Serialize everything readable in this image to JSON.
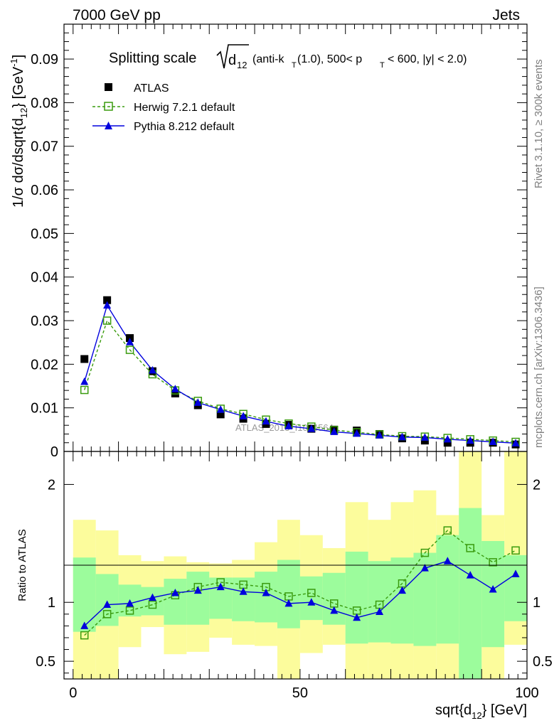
{
  "header": {
    "left": "7000 GeV pp",
    "right": "Jets"
  },
  "side_labels": {
    "rivet": "Rivet 3.1.10, ≥ 300k events",
    "mcplots": "mcplots.cern.ch [arXiv:1306.3436]"
  },
  "watermark": "ATLAS_2013_I1094564",
  "chart_data": [
    {
      "type": "line",
      "panel": "main",
      "title": "Splitting scale √d12 (anti-kT(1.0), 500< pT < 600, |y| < 2.0)",
      "title_parts": {
        "lead": "Splitting scale",
        "d": "d",
        "sub12": "12",
        "open": "(anti-k",
        "subT": "T",
        "mid": "(1.0), 500< p",
        "subT2": "T",
        "tail": "< 600, |y| < 2.0)"
      },
      "ylabel_parts": {
        "a": "1/σ dσ/dsqrt{d",
        "sub": "12",
        "b": "} [GeV",
        "sup": "-1",
        "c": "]"
      },
      "xlim": [
        -2,
        100
      ],
      "ylim": [
        0,
        0.098
      ],
      "yticks": [
        0,
        0.01,
        0.02,
        0.03,
        0.04,
        0.05,
        0.06,
        0.07,
        0.08,
        0.09
      ],
      "ytick_labels": [
        "0",
        "0.01",
        "0.02",
        "0.03",
        "0.04",
        "0.05",
        "0.06",
        "0.07",
        "0.08",
        "0.09"
      ],
      "x": [
        2.5,
        7.5,
        12.5,
        17.5,
        22.5,
        27.5,
        32.5,
        37.5,
        42.5,
        47.5,
        52.5,
        57.5,
        62.5,
        67.5,
        72.5,
        77.5,
        82.5,
        87.5,
        92.5,
        97.5
      ],
      "legend": [
        "ATLAS",
        "Herwig 7.2.1 default",
        "Pythia 8.212 default"
      ],
      "series": [
        {
          "name": "ATLAS",
          "color": "#000000",
          "values": [
            0.0212,
            0.0347,
            0.026,
            0.0184,
            0.0133,
            0.0106,
            0.0085,
            0.0075,
            0.0063,
            0.0061,
            0.0052,
            0.005,
            0.0048,
            0.004,
            0.003,
            0.0025,
            0.002,
            0.002,
            0.002,
            0.0016
          ]
        },
        {
          "name": "Herwig 7.2.1 default",
          "color": "#3a9b0e",
          "values": [
            0.0141,
            0.03,
            0.0233,
            0.0177,
            0.014,
            0.0116,
            0.0098,
            0.0086,
            0.0073,
            0.0064,
            0.0057,
            0.0049,
            0.0044,
            0.0039,
            0.0035,
            0.0034,
            0.0031,
            0.0028,
            0.0025,
            0.0022
          ]
        },
        {
          "name": "Pythia 8.212 default",
          "color": "#0000dd",
          "values": [
            0.016,
            0.0335,
            0.0251,
            0.0186,
            0.0143,
            0.0112,
            0.0096,
            0.0081,
            0.0069,
            0.0058,
            0.0052,
            0.0045,
            0.0041,
            0.0037,
            0.0033,
            0.0032,
            0.0028,
            0.0025,
            0.0022,
            0.0019
          ]
        }
      ]
    },
    {
      "type": "line",
      "panel": "ratio",
      "ylabel": "Ratio to ATLAS",
      "xlabel_parts": {
        "a": "sqrt{d",
        "sub": "12",
        "b": "} [GeV]"
      },
      "xlim": [
        -2,
        100
      ],
      "ylim": [
        0.35,
        2.28
      ],
      "xticks": [
        0,
        50,
        100
      ],
      "xtick_labels": [
        "0",
        "50",
        "100"
      ],
      "yticks": [
        0.5,
        1,
        2
      ],
      "ytick_labels": [
        "0.5",
        "1",
        "2"
      ],
      "x": [
        2.5,
        7.5,
        12.5,
        17.5,
        22.5,
        27.5,
        32.5,
        37.5,
        42.5,
        47.5,
        52.5,
        57.5,
        62.5,
        67.5,
        72.5,
        77.5,
        82.5,
        87.5,
        92.5,
        97.5
      ],
      "band_edges": [
        0,
        5,
        10,
        15,
        20,
        25,
        30,
        35,
        40,
        45,
        50,
        55,
        60,
        65,
        70,
        75,
        80,
        85,
        90,
        95,
        100
      ],
      "band_outer": [
        [
          0.35,
          1.7
        ],
        [
          0.35,
          1.61
        ],
        [
          0.62,
          1.4
        ],
        [
          0.79,
          1.35
        ],
        [
          0.56,
          1.39
        ],
        [
          0.58,
          1.34
        ],
        [
          0.7,
          1.33
        ],
        [
          0.64,
          1.36
        ],
        [
          0.63,
          1.51
        ],
        [
          0.35,
          1.7
        ],
        [
          0.57,
          1.57
        ],
        [
          0.64,
          1.46
        ],
        [
          0.35,
          1.85
        ],
        [
          0.35,
          1.7
        ],
        [
          0.35,
          1.85
        ],
        [
          0.35,
          1.95
        ],
        [
          0.35,
          1.74
        ],
        [
          0.35,
          2.28
        ],
        [
          0.35,
          1.74
        ],
        [
          0.64,
          2.28
        ]
      ],
      "band_inner": [
        [
          0.75,
          1.38
        ],
        [
          0.8,
          1.24
        ],
        [
          0.88,
          1.15
        ],
        [
          0.89,
          1.13
        ],
        [
          0.81,
          1.2
        ],
        [
          0.81,
          1.26
        ],
        [
          0.86,
          1.21
        ],
        [
          0.84,
          1.21
        ],
        [
          0.83,
          1.26
        ],
        [
          0.78,
          1.36
        ],
        [
          0.85,
          1.22
        ],
        [
          0.81,
          1.25
        ],
        [
          0.65,
          1.43
        ],
        [
          0.66,
          1.35
        ],
        [
          0.65,
          1.38
        ],
        [
          0.63,
          1.42
        ],
        [
          0.65,
          1.57
        ],
        [
          0.35,
          1.8
        ],
        [
          0.62,
          1.52
        ],
        [
          0.84,
          1.4
        ]
      ],
      "band_colors": {
        "outer": "#fcfc9c",
        "inner": "#9cfc9c"
      },
      "series": [
        {
          "name": "Herwig 7.2.1 default",
          "color": "#3a9b0e",
          "values": [
            0.72,
            0.9,
            0.93,
            0.98,
            1.06,
            1.13,
            1.17,
            1.15,
            1.13,
            1.05,
            1.08,
            0.99,
            0.93,
            0.98,
            1.16,
            1.42,
            1.61,
            1.46,
            1.34,
            1.44
          ]
        },
        {
          "name": "Pythia 8.212 default",
          "color": "#0000dd",
          "values": [
            0.8,
            0.98,
            0.99,
            1.04,
            1.08,
            1.1,
            1.13,
            1.09,
            1.08,
            0.99,
            1.0,
            0.93,
            0.87,
            0.92,
            1.1,
            1.29,
            1.35,
            1.23,
            1.11,
            1.24
          ]
        }
      ]
    }
  ]
}
